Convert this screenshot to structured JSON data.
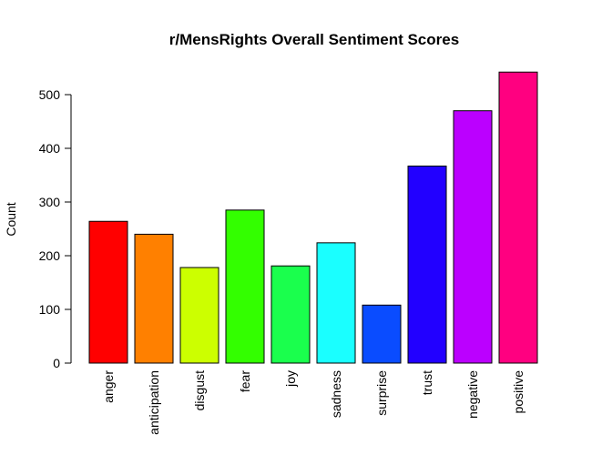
{
  "chart_data": {
    "type": "bar",
    "title": "r/MensRights Overall Sentiment Scores",
    "xlabel": "",
    "ylabel": "Count",
    "ylim": [
      0,
      550
    ],
    "yticks": [
      0,
      100,
      200,
      300,
      400,
      500
    ],
    "categories": [
      "anger",
      "anticipation",
      "disgust",
      "fear",
      "joy",
      "sadness",
      "surprise",
      "trust",
      "negative",
      "positive"
    ],
    "values": [
      264,
      240,
      178,
      285,
      181,
      224,
      108,
      367,
      470,
      542
    ],
    "colors": [
      "#FF0000",
      "#FF8000",
      "#CCFF00",
      "#33FF00",
      "#1AFF4D",
      "#1AFFFF",
      "#0A4CFF",
      "#2200FF",
      "#BB00FF",
      "#FF0080"
    ]
  }
}
